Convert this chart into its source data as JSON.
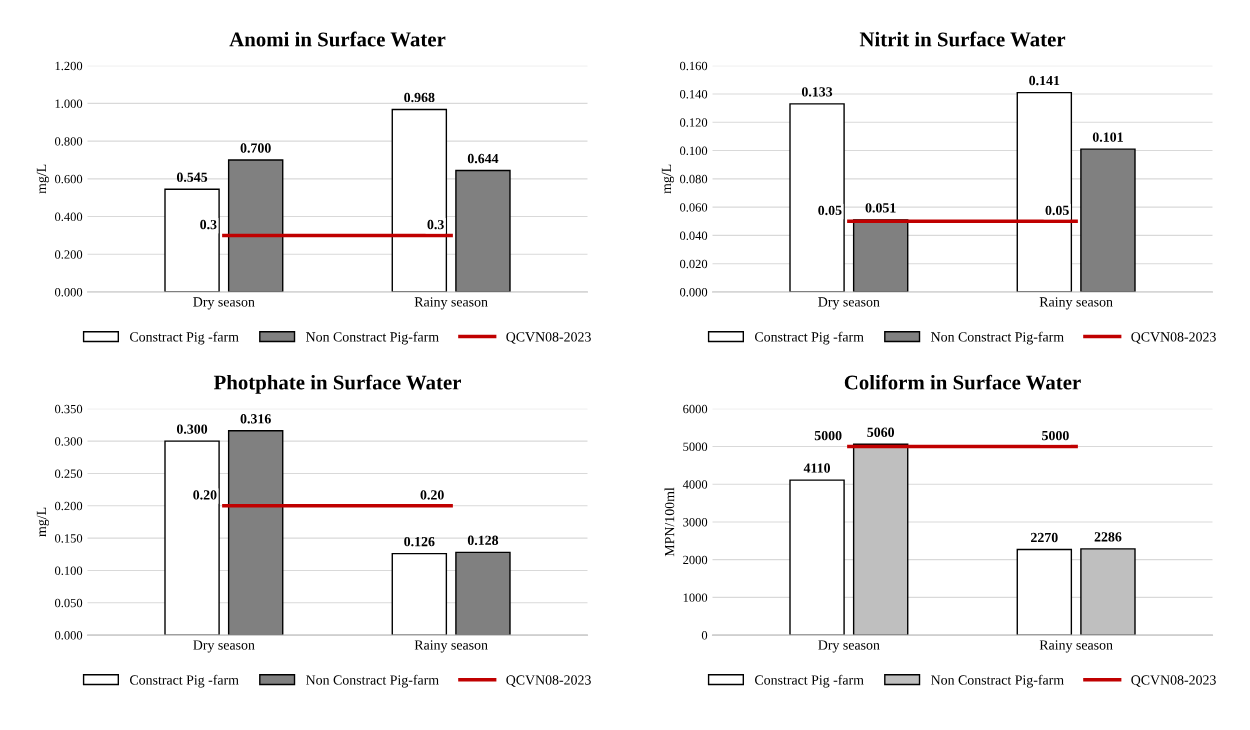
{
  "chart_data": [
    {
      "type": "bar",
      "title": "Anomi in Surface Water",
      "ylabel": "mg/L",
      "categories": [
        "Dry season",
        "Rainy season"
      ],
      "ylim": [
        0,
        1.2
      ],
      "yticks": [
        {
          "value": 0,
          "label": "0.000"
        },
        {
          "value": 0.2,
          "label": "0.200"
        },
        {
          "value": 0.4,
          "label": "0.400"
        },
        {
          "value": 0.6,
          "label": "0.600"
        },
        {
          "value": 0.8,
          "label": "0.800"
        },
        {
          "value": 1.0,
          "label": "1.000"
        },
        {
          "value": 1.2,
          "label": "1.200"
        }
      ],
      "grid": "y",
      "legend": "bottom",
      "series": [
        {
          "name": "Constract Pig -farm",
          "color": "#ffffff",
          "values": [
            0.545,
            0.968
          ],
          "value_labels": [
            "0.545",
            "0.968"
          ]
        },
        {
          "name": "Non Constract Pig-farm",
          "color": "#808080",
          "values": [
            0.7,
            0.644
          ],
          "value_labels": [
            "0.700",
            "0.644"
          ]
        },
        {
          "name": "QCVN08-2023",
          "type": "line",
          "color": "#c00000",
          "values": [
            0.3,
            0.3
          ],
          "value_labels": [
            "0.3",
            "0.3"
          ]
        }
      ]
    },
    {
      "type": "bar",
      "title": "Nitrit in Surface Water",
      "ylabel": "mg/L",
      "categories": [
        "Dry season",
        "Rainy season"
      ],
      "ylim": [
        0,
        0.16
      ],
      "yticks": [
        {
          "value": 0,
          "label": "0.000"
        },
        {
          "value": 0.02,
          "label": "0.020"
        },
        {
          "value": 0.04,
          "label": "0.040"
        },
        {
          "value": 0.06,
          "label": "0.060"
        },
        {
          "value": 0.08,
          "label": "0.080"
        },
        {
          "value": 0.1,
          "label": "0.100"
        },
        {
          "value": 0.12,
          "label": "0.120"
        },
        {
          "value": 0.14,
          "label": "0.140"
        },
        {
          "value": 0.16,
          "label": "0.160"
        }
      ],
      "grid": "y",
      "legend": "bottom",
      "series": [
        {
          "name": "Constract Pig -farm",
          "color": "#ffffff",
          "values": [
            0.133,
            0.141
          ],
          "value_labels": [
            "0.133",
            "0.141"
          ]
        },
        {
          "name": "Non Constract Pig-farm",
          "color": "#808080",
          "values": [
            0.051,
            0.101
          ],
          "value_labels": [
            "0.051",
            "0.101"
          ]
        },
        {
          "name": "QCVN08-2023",
          "type": "line",
          "color": "#c00000",
          "values": [
            0.05,
            0.05
          ],
          "value_labels": [
            "0.05",
            "0.05"
          ]
        }
      ]
    },
    {
      "type": "bar",
      "title": "Photphate in Surface Water",
      "ylabel": "mg/L",
      "categories": [
        "Dry season",
        "Rainy season"
      ],
      "ylim": [
        0,
        0.35
      ],
      "yticks": [
        {
          "value": 0,
          "label": "0.000"
        },
        {
          "value": 0.05,
          "label": "0.050"
        },
        {
          "value": 0.1,
          "label": "0.100"
        },
        {
          "value": 0.15,
          "label": "0.150"
        },
        {
          "value": 0.2,
          "label": "0.200"
        },
        {
          "value": 0.25,
          "label": "0.250"
        },
        {
          "value": 0.3,
          "label": "0.300"
        },
        {
          "value": 0.35,
          "label": "0.350"
        }
      ],
      "grid": "y",
      "legend": "bottom",
      "series": [
        {
          "name": "Constract Pig -farm",
          "color": "#ffffff",
          "values": [
            0.3,
            0.126
          ],
          "value_labels": [
            "0.300",
            "0.126"
          ]
        },
        {
          "name": "Non Constract Pig-farm",
          "color": "#808080",
          "values": [
            0.316,
            0.128
          ],
          "value_labels": [
            "0.316",
            "0.128"
          ]
        },
        {
          "name": "QCVN08-2023",
          "type": "line",
          "color": "#c00000",
          "values": [
            0.2,
            0.2
          ],
          "value_labels": [
            "0.20",
            "0.20"
          ]
        }
      ]
    },
    {
      "type": "bar",
      "title": "Coliform in Surface Water",
      "ylabel": "MPN/100ml",
      "categories": [
        "Dry season",
        "Rainy season"
      ],
      "ylim": [
        0,
        6000
      ],
      "yticks": [
        0,
        1000,
        2000,
        3000,
        4000,
        5000,
        6000
      ],
      "grid": "y",
      "legend": "bottom",
      "series": [
        {
          "name": "Constract Pig -farm",
          "color": "#ffffff",
          "values": [
            4110,
            2270
          ],
          "value_labels": [
            "4110",
            "2270"
          ]
        },
        {
          "name": "Non Constract Pig-farm",
          "color": "#bfbfbf",
          "values": [
            5060,
            2286
          ],
          "value_labels": [
            "5060",
            "2286"
          ]
        },
        {
          "name": "QCVN08-2023",
          "type": "line",
          "color": "#c00000",
          "values": [
            5000,
            5000
          ],
          "value_labels": [
            "5000",
            "5000"
          ]
        }
      ]
    }
  ]
}
